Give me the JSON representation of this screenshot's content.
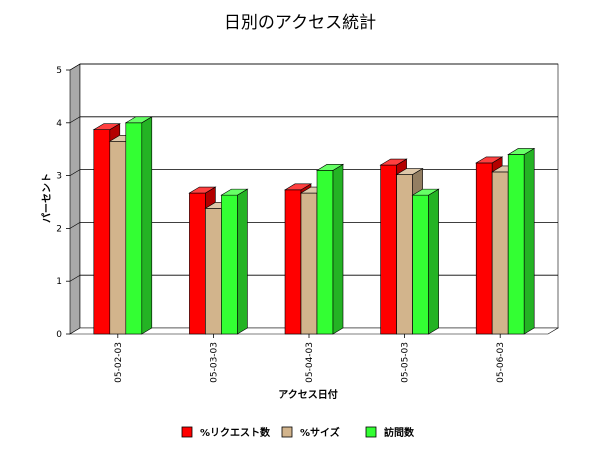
{
  "chart_data": {
    "type": "bar",
    "title": "日別のアクセス統計",
    "xlabel": "アクセス日付",
    "ylabel": "パーセント",
    "categories": [
      "05-02-03",
      "05-03-03",
      "05-04-03",
      "05-05-03",
      "05-06-03"
    ],
    "ylim": [
      0,
      5
    ],
    "yticks": [
      "0",
      "1",
      "2",
      "3",
      "4",
      "5"
    ],
    "grid": true,
    "legend_position": "bottom",
    "series": [
      {
        "name": "%リクエスト数",
        "color": "#ff0000",
        "values": [
          3.87,
          2.67,
          2.73,
          3.2,
          3.24
        ]
      },
      {
        "name": "%サイズ",
        "color": "#d2b48c",
        "values": [
          3.65,
          2.38,
          2.67,
          3.02,
          3.07
        ]
      },
      {
        "name": "訪問数",
        "color": "#33ff33",
        "values": [
          4.0,
          2.63,
          3.1,
          2.63,
          3.4
        ]
      }
    ]
  }
}
